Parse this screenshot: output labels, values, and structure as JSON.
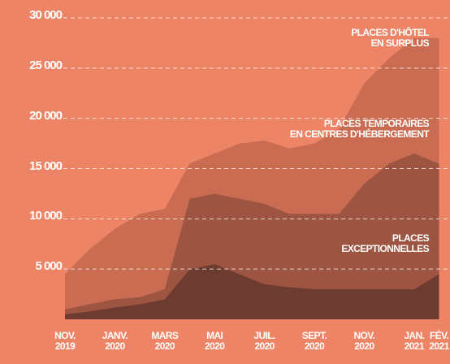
{
  "chart_data": {
    "type": "stacked-area",
    "categories": [
      "NOV.\n2019",
      null,
      "JANV.\n2020",
      null,
      "MARS\n2020",
      null,
      "MAI\n2020",
      null,
      "JUIL.\n2020",
      null,
      "SEPT.\n2020",
      null,
      "NOV.\n2020",
      null,
      "JAN.\n2021",
      "FÉV.\n2021"
    ],
    "series": [
      {
        "name": "PLACES\nEXCEPTIONNELLES",
        "color": "#6e3b30",
        "values": [
          500,
          800,
          1200,
          1500,
          2000,
          5000,
          5500,
          4500,
          3500,
          3200,
          3000,
          3000,
          3000,
          3000,
          3000,
          4500
        ]
      },
      {
        "name": "PLACES TEMPORAIRES\nEN CENTRES D'HÉBERGEMENT",
        "color": "#9d5542",
        "values": [
          500,
          700,
          800,
          700,
          1000,
          7000,
          7000,
          7500,
          8000,
          7300,
          7500,
          7500,
          10500,
          12500,
          13500,
          11000
        ]
      },
      {
        "name": "PLACES D'HÔTEL\nEN SURPLUS",
        "color": "#c96c52",
        "values": [
          3500,
          5500,
          7000,
          8300,
          8000,
          3500,
          4000,
          5500,
          6300,
          6500,
          7000,
          8500,
          10000,
          10500,
          11500,
          12500
        ]
      }
    ],
    "ylim": [
      0,
      30000
    ],
    "yticks": [
      {
        "value": 5000,
        "label": "5 000"
      },
      {
        "value": 10000,
        "label": "10 000"
      },
      {
        "value": 15000,
        "label": "15 000"
      },
      {
        "value": 20000,
        "label": "20 000"
      },
      {
        "value": 25000,
        "label": "25 000"
      },
      {
        "value": 30000,
        "label": "30 000"
      }
    ],
    "grid": true
  }
}
